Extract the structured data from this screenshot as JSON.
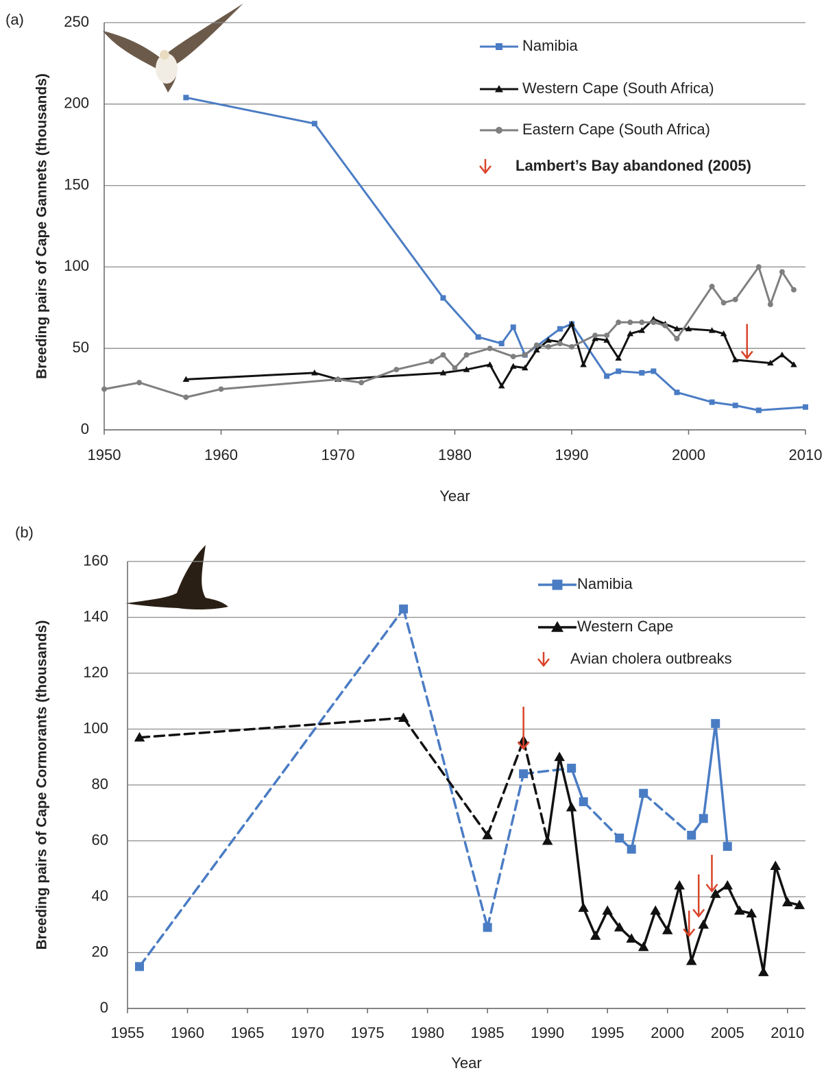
{
  "chart_data": [
    {
      "type": "line",
      "panel_label": "(a)",
      "xlabel": "Year",
      "ylabel": "Breeding pairs of Cape Gannets (thousands)",
      "xlim": [
        1950,
        2010
      ],
      "ylim": [
        0,
        250
      ],
      "xticks": [
        1950,
        1960,
        1970,
        1980,
        1990,
        2000,
        2010
      ],
      "yticks": [
        0,
        50,
        100,
        150,
        200,
        250
      ],
      "grid": true,
      "series": [
        {
          "name": "Namibia",
          "color": "#4a7cc4",
          "marker": "square",
          "x": [
            1957,
            1968,
            1979,
            1982,
            1984,
            1985,
            1986,
            1989,
            1990,
            1993,
            1994,
            1996,
            1997,
            1999,
            2002,
            2004,
            2006,
            2010
          ],
          "values": [
            204,
            188,
            81,
            57,
            53,
            63,
            46,
            62,
            65,
            33,
            36,
            35,
            36,
            23,
            17,
            15,
            12,
            14
          ]
        },
        {
          "name": "Western Cape (South Africa)",
          "color": "#111111",
          "marker": "triangle",
          "x": [
            1957,
            1968,
            1970,
            1979,
            1981,
            1983,
            1984,
            1985,
            1986,
            1987,
            1988,
            1989,
            1990,
            1991,
            1992,
            1993,
            1994,
            1995,
            1996,
            1997,
            1998,
            1999,
            2000,
            2002,
            2003,
            2004,
            2007,
            2008,
            2009
          ],
          "values": [
            31,
            35,
            31,
            35,
            37,
            40,
            27,
            39,
            38,
            49,
            55,
            54,
            65,
            40,
            56,
            55,
            44,
            59,
            61,
            68,
            65,
            62,
            62,
            61,
            59,
            43,
            41,
            46,
            40
          ]
        },
        {
          "name": "Eastern Cape (South Africa)",
          "color": "#7f7f7f",
          "marker": "circle",
          "x": [
            1950,
            1953,
            1957,
            1960,
            1970,
            1972,
            1975,
            1978,
            1979,
            1980,
            1981,
            1983,
            1985,
            1986,
            1987,
            1988,
            1989,
            1990,
            1992,
            1993,
            1994,
            1995,
            1996,
            1997,
            1998,
            1999,
            2002,
            2003,
            2004,
            2006,
            2007,
            2008,
            2009
          ],
          "values": [
            25,
            29,
            20,
            25,
            31,
            29,
            37,
            42,
            46,
            38,
            46,
            50,
            45,
            46,
            52,
            51,
            53,
            51,
            58,
            58,
            66,
            66,
            66,
            66,
            64,
            56,
            88,
            78,
            80,
            100,
            77,
            97,
            86
          ]
        }
      ],
      "annotation": {
        "label": "Lambert’s Bay abandoned (2005)",
        "color": "#d9432a",
        "arrows": [
          {
            "x": 2005,
            "y": [
              65,
              44
            ]
          }
        ]
      }
    },
    {
      "type": "line",
      "panel_label": "(b)",
      "xlabel": "Year",
      "ylabel": "Breeding  pairs of Cape Cormorants (thousands)",
      "xlim": [
        1955,
        2011.5
      ],
      "ylim": [
        0,
        160
      ],
      "xticks": [
        1955,
        1960,
        1965,
        1970,
        1975,
        1980,
        1985,
        1990,
        1995,
        2000,
        2005,
        2010
      ],
      "yticks": [
        0,
        20,
        40,
        60,
        80,
        100,
        120,
        140,
        160
      ],
      "grid": true,
      "dash_across_gaps": true,
      "series": [
        {
          "name": "Namibia",
          "color": "#4a7cc4",
          "marker": "square",
          "x": [
            1956,
            1978,
            1985,
            1988,
            1992,
            1993,
            1996,
            1997,
            1998,
            2002,
            2003,
            2004,
            2005
          ],
          "values": [
            15,
            143,
            29,
            84,
            86,
            74,
            61,
            57,
            77,
            62,
            68,
            102,
            58
          ]
        },
        {
          "name": "Western Cape",
          "color": "#111111",
          "marker": "triangle",
          "x": [
            1956,
            1978,
            1985,
            1988,
            1990,
            1991,
            1992,
            1993,
            1994,
            1995,
            1996,
            1997,
            1998,
            1999,
            2000,
            2001,
            2002,
            2003,
            2004,
            2005,
            2006,
            2007,
            2008,
            2009,
            2010,
            2011
          ],
          "values": [
            97,
            104,
            62,
            96,
            60,
            90,
            72,
            36,
            26,
            35,
            29,
            25,
            22,
            35,
            28,
            44,
            17,
            30,
            41,
            44,
            35,
            34,
            13,
            51,
            38,
            37
          ]
        }
      ],
      "annotation": {
        "label": "Avian cholera outbreaks",
        "color": "#d9432a",
        "arrows": [
          {
            "x": 1988,
            "y": [
              108,
              93
            ]
          },
          {
            "x": 2001.8,
            "y": [
              35,
              26
            ]
          },
          {
            "x": 2002.6,
            "y": [
              48,
              33
            ]
          },
          {
            "x": 2003.7,
            "y": [
              55,
              42
            ]
          }
        ]
      }
    }
  ]
}
